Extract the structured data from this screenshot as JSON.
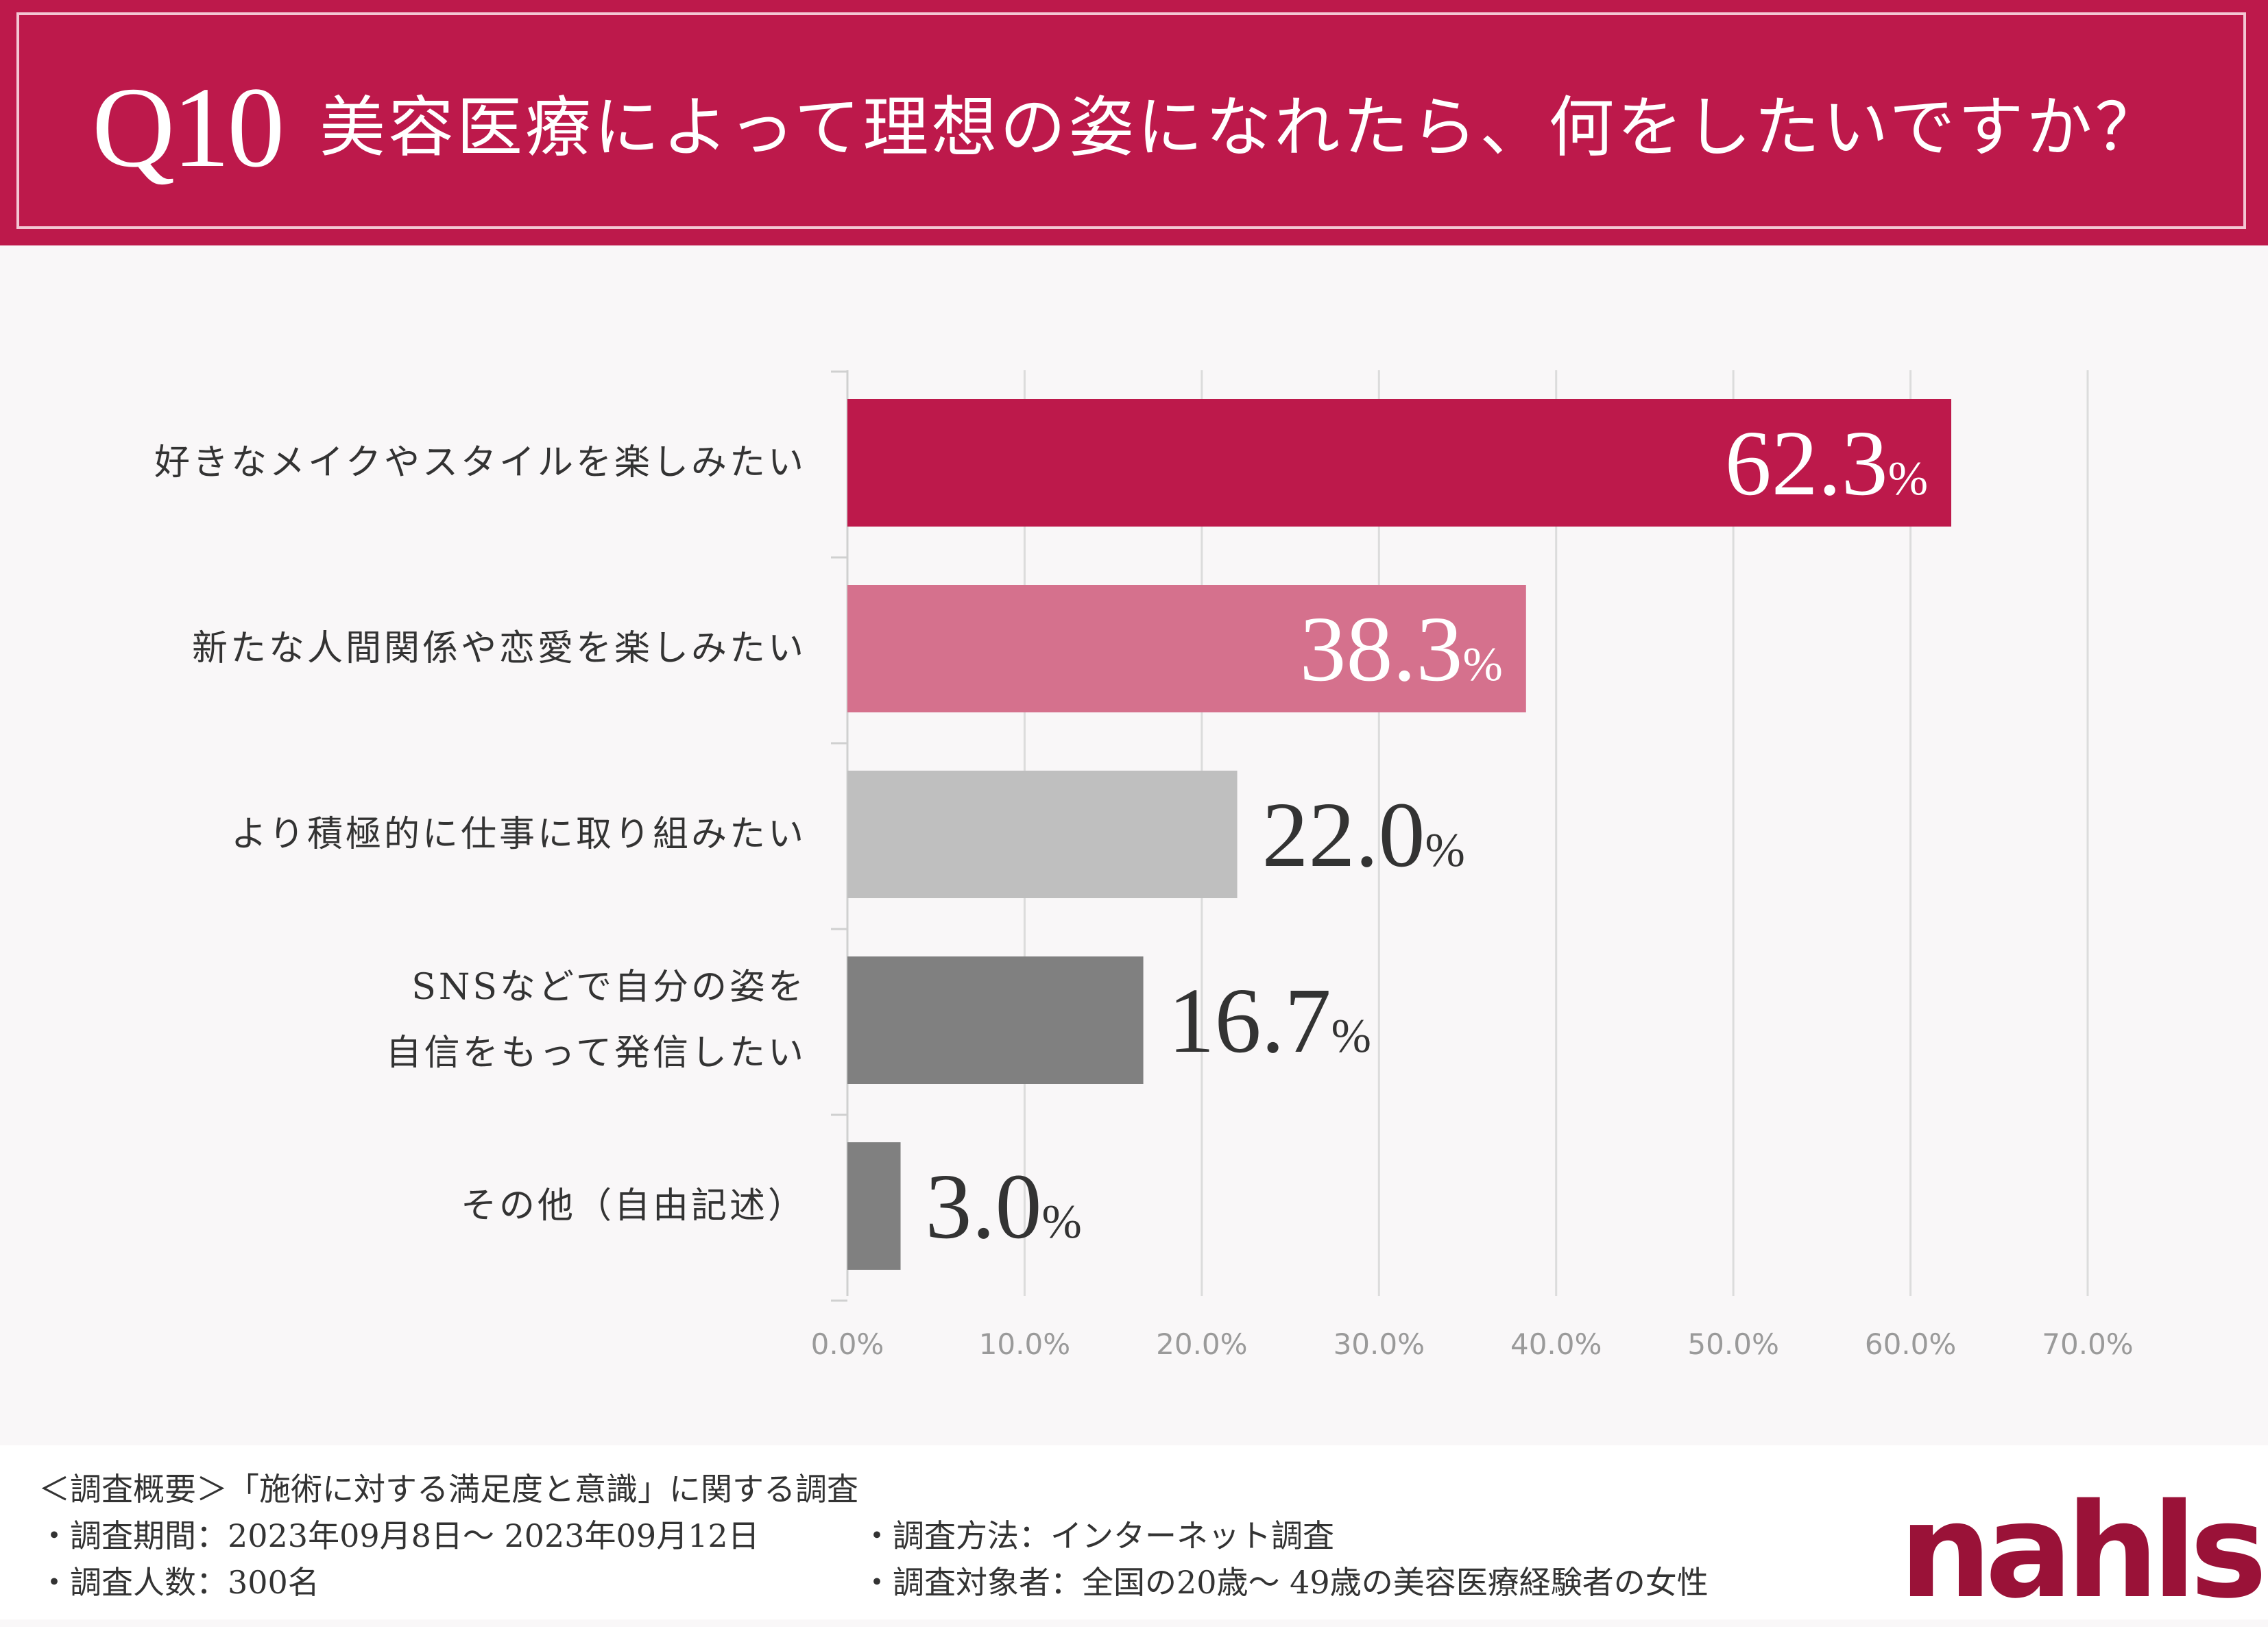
{
  "header": {
    "q_number": "Q10",
    "question": "美容医療によって理想の姿になれたら、何をしたいですか？"
  },
  "colors": {
    "brand": "#bd194b",
    "bars": [
      "#bd194b",
      "#d5718d",
      "#bfbfbf",
      "#808080",
      "#808080"
    ],
    "value_text": [
      "#ffffff",
      "#ffffff",
      "#333333",
      "#333333",
      "#333333"
    ]
  },
  "chart_data": {
    "type": "bar",
    "orientation": "horizontal",
    "categories": [
      "好きなメイクやスタイルを楽しみたい",
      "新たな人間関係や恋愛を楽しみたい",
      "より積極的に仕事に取り組みたい",
      "SNSなどで自分の姿を自信をもって発信したい",
      "その他（自由記述）"
    ],
    "category_lines": [
      [
        "好きなメイクやスタイルを楽しみたい"
      ],
      [
        "新たな人間関係や恋愛を楽しみたい"
      ],
      [
        "より積極的に仕事に取り組みたい"
      ],
      [
        "SNSなどで自分の姿を",
        "自信をもって発信したい"
      ],
      [
        "その他（自由記述）"
      ]
    ],
    "values": [
      62.3,
      38.3,
      22.0,
      16.7,
      3.0
    ],
    "value_labels": [
      "62.3",
      "38.3",
      "22.0",
      "16.7",
      "3.0"
    ],
    "unit": "%",
    "xlim": [
      0,
      70
    ],
    "ticks": [
      0,
      10,
      20,
      30,
      40,
      50,
      60,
      70
    ],
    "tick_labels": [
      "0.0%",
      "10.0%",
      "20.0%",
      "30.0%",
      "40.0%",
      "50.0%",
      "60.0%",
      "70.0%"
    ],
    "grid": true,
    "legend": "none"
  },
  "footer": {
    "overview": "＜調査概要＞「施術に対する満足度と意識」に関する調査",
    "period": "・調査期間：2023年09月8日〜 2023年09月12日",
    "count": "・調査人数：300名",
    "method": "・調査方法：インターネット調査",
    "target": "・調査対象者：全国の20歳〜 49歳の美容医療経験者の女性",
    "logo_text": "nahls"
  }
}
